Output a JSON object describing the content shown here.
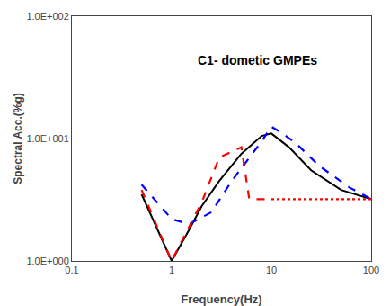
{
  "chart_data": {
    "type": "line",
    "title": "C1- dometic GMPEs",
    "x_label": "Frequency(Hz)",
    "y_label": "Spectral Acc.(%g)",
    "log": true,
    "grid": false,
    "xlim": [
      0.1,
      100
    ],
    "ylim": [
      1.0,
      100.0
    ],
    "xticks": [
      0.1,
      1,
      10,
      100
    ],
    "yticks": [
      {
        "value": 1.0,
        "label": "1.0E+000"
      },
      {
        "value": 10.0,
        "label": "1.0E+001"
      },
      {
        "value": 100.0,
        "label": "1.0E+002"
      }
    ],
    "series": [
      {
        "color": "#000000",
        "line_style": "solid",
        "x": [
          0.5,
          1.0,
          1.5,
          2.0,
          3.0,
          5.0,
          8.0,
          10.0,
          15.0,
          25.0,
          50.0,
          100.0
        ],
        "values": [
          3.5,
          1.0,
          1.8,
          2.8,
          4.5,
          7.5,
          10.5,
          11.0,
          8.5,
          5.5,
          3.8,
          3.2
        ]
      },
      {
        "color": "#0000ff",
        "line_style": "dashed",
        "x": [
          0.5,
          1.0,
          1.5,
          2.5,
          4.0,
          6.0,
          8.0,
          10.0,
          13.0,
          18.0,
          30.0,
          60.0,
          100.0
        ],
        "values": [
          4.2,
          2.2,
          2.0,
          2.5,
          4.5,
          7.0,
          9.5,
          12.5,
          11.0,
          9.0,
          6.0,
          4.0,
          3.2
        ]
      },
      {
        "color": "#ff0000",
        "line_style": "dashed",
        "x": [
          0.5,
          1.0,
          2.0,
          3.0,
          5.0,
          6.0,
          10.0
        ],
        "values": [
          3.8,
          1.0,
          3.0,
          7.0,
          8.5,
          3.2,
          3.2
        ]
      },
      {
        "color": "#ff0000",
        "line_style": "dotted",
        "x": [
          10.0,
          15.0,
          20.0,
          30.0,
          50.0,
          70.0,
          100.0
        ],
        "values": [
          3.2,
          3.2,
          3.2,
          3.2,
          3.2,
          3.2,
          3.2
        ]
      }
    ]
  }
}
